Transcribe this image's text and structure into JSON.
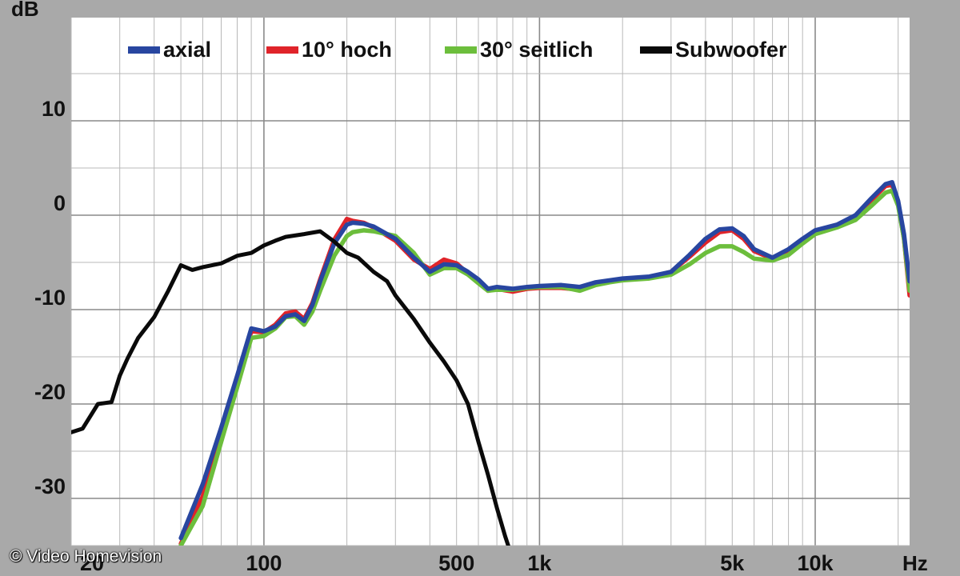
{
  "chart_data": {
    "type": "line",
    "title": "",
    "xlabel": "Hz",
    "ylabel": "dB",
    "x_scale": "log",
    "xlim": [
      20,
      22000
    ],
    "ylim": [
      -35,
      15
    ],
    "grid": true,
    "legend_position": "top",
    "x_ticks": [
      {
        "value": 20,
        "label": "20"
      },
      {
        "value": 100,
        "label": "100"
      },
      {
        "value": 500,
        "label": "500"
      },
      {
        "value": 1000,
        "label": "1k"
      },
      {
        "value": 5000,
        "label": "5k"
      },
      {
        "value": 10000,
        "label": "10k"
      }
    ],
    "y_ticks": [
      {
        "value": 10,
        "label": "10"
      },
      {
        "value": 0,
        "label": "0"
      },
      {
        "value": -10,
        "label": "-10"
      },
      {
        "value": -20,
        "label": "-20"
      },
      {
        "value": -30,
        "label": "-30"
      }
    ],
    "series": [
      {
        "name": "axial",
        "color": "#2846a0",
        "points": [
          [
            50,
            -34.2
          ],
          [
            60,
            -28.5
          ],
          [
            70,
            -22.5
          ],
          [
            80,
            -17
          ],
          [
            90,
            -12
          ],
          [
            100,
            -12.3
          ],
          [
            110,
            -11.8
          ],
          [
            120,
            -10.7
          ],
          [
            130,
            -10.5
          ],
          [
            140,
            -11.2
          ],
          [
            150,
            -9.5
          ],
          [
            160,
            -7
          ],
          [
            180,
            -3
          ],
          [
            200,
            -1
          ],
          [
            210,
            -0.8
          ],
          [
            230,
            -0.9
          ],
          [
            250,
            -1.2
          ],
          [
            300,
            -2.5
          ],
          [
            350,
            -4.5
          ],
          [
            400,
            -6
          ],
          [
            450,
            -5.2
          ],
          [
            500,
            -5.3
          ],
          [
            550,
            -6
          ],
          [
            600,
            -6.8
          ],
          [
            650,
            -7.8
          ],
          [
            700,
            -7.6
          ],
          [
            800,
            -7.8
          ],
          [
            900,
            -7.6
          ],
          [
            1000,
            -7.5
          ],
          [
            1200,
            -7.4
          ],
          [
            1400,
            -7.6
          ],
          [
            1600,
            -7.1
          ],
          [
            1800,
            -6.9
          ],
          [
            2000,
            -6.7
          ],
          [
            2500,
            -6.5
          ],
          [
            3000,
            -6
          ],
          [
            3500,
            -4.2
          ],
          [
            4000,
            -2.5
          ],
          [
            4500,
            -1.5
          ],
          [
            5000,
            -1.4
          ],
          [
            5500,
            -2.2
          ],
          [
            6000,
            -3.6
          ],
          [
            7000,
            -4.5
          ],
          [
            8000,
            -3.6
          ],
          [
            9000,
            -2.5
          ],
          [
            10000,
            -1.6
          ],
          [
            12000,
            -1
          ],
          [
            14000,
            0
          ],
          [
            16000,
            1.8
          ],
          [
            18000,
            3.3
          ],
          [
            19000,
            3.5
          ],
          [
            20000,
            1.5
          ],
          [
            21000,
            -2
          ],
          [
            22000,
            -7
          ]
        ]
      },
      {
        "name": "10° hoch",
        "color": "#e0242a",
        "points": [
          [
            50,
            -34.8
          ],
          [
            60,
            -29.8
          ],
          [
            70,
            -23
          ],
          [
            80,
            -17.5
          ],
          [
            90,
            -12.3
          ],
          [
            100,
            -12.4
          ],
          [
            110,
            -11.6
          ],
          [
            120,
            -10.4
          ],
          [
            130,
            -10.2
          ],
          [
            140,
            -11
          ],
          [
            150,
            -9.3
          ],
          [
            160,
            -6.8
          ],
          [
            180,
            -2.6
          ],
          [
            200,
            -0.4
          ],
          [
            210,
            -0.6
          ],
          [
            230,
            -0.8
          ],
          [
            250,
            -1.3
          ],
          [
            300,
            -2.7
          ],
          [
            350,
            -4.7
          ],
          [
            400,
            -5.7
          ],
          [
            450,
            -4.7
          ],
          [
            500,
            -5.1
          ],
          [
            550,
            -6.2
          ],
          [
            600,
            -7
          ],
          [
            650,
            -8
          ],
          [
            700,
            -7.8
          ],
          [
            800,
            -8.1
          ],
          [
            900,
            -7.8
          ],
          [
            1000,
            -7.7
          ],
          [
            1200,
            -7.7
          ],
          [
            1400,
            -7.9
          ],
          [
            1600,
            -7.3
          ],
          [
            1800,
            -7
          ],
          [
            2000,
            -6.8
          ],
          [
            2500,
            -6.6
          ],
          [
            3000,
            -6
          ],
          [
            3500,
            -4.4
          ],
          [
            4000,
            -2.9
          ],
          [
            4500,
            -1.8
          ],
          [
            5000,
            -1.6
          ],
          [
            5500,
            -2.5
          ],
          [
            6000,
            -3.8
          ],
          [
            7000,
            -4.6
          ],
          [
            8000,
            -3.8
          ],
          [
            9000,
            -2.6
          ],
          [
            10000,
            -1.7
          ],
          [
            12000,
            -1.1
          ],
          [
            14000,
            -0.1
          ],
          [
            16000,
            1.6
          ],
          [
            18000,
            3.1
          ],
          [
            19000,
            3.2
          ],
          [
            20000,
            1.2
          ],
          [
            21000,
            -2.5
          ],
          [
            22000,
            -8.5
          ]
        ]
      },
      {
        "name": "30° seitlich",
        "color": "#6cbe3c",
        "points": [
          [
            50,
            -35
          ],
          [
            60,
            -30.8
          ],
          [
            70,
            -24
          ],
          [
            80,
            -18.2
          ],
          [
            90,
            -13
          ],
          [
            100,
            -12.8
          ],
          [
            110,
            -12
          ],
          [
            120,
            -10.8
          ],
          [
            130,
            -10.7
          ],
          [
            140,
            -11.6
          ],
          [
            150,
            -10.2
          ],
          [
            160,
            -8
          ],
          [
            180,
            -4.3
          ],
          [
            200,
            -2.2
          ],
          [
            210,
            -1.8
          ],
          [
            230,
            -1.6
          ],
          [
            250,
            -1.7
          ],
          [
            300,
            -2.2
          ],
          [
            350,
            -4
          ],
          [
            400,
            -6.3
          ],
          [
            450,
            -5.6
          ],
          [
            500,
            -5.6
          ],
          [
            550,
            -6.3
          ],
          [
            600,
            -7.2
          ],
          [
            650,
            -8
          ],
          [
            700,
            -7.9
          ],
          [
            800,
            -7.9
          ],
          [
            900,
            -7.7
          ],
          [
            1000,
            -7.6
          ],
          [
            1200,
            -7.6
          ],
          [
            1400,
            -8
          ],
          [
            1600,
            -7.4
          ],
          [
            1800,
            -7.1
          ],
          [
            2000,
            -6.9
          ],
          [
            2500,
            -6.7
          ],
          [
            3000,
            -6.3
          ],
          [
            3500,
            -5.2
          ],
          [
            4000,
            -4
          ],
          [
            4500,
            -3.3
          ],
          [
            5000,
            -3.3
          ],
          [
            5500,
            -3.9
          ],
          [
            6000,
            -4.6
          ],
          [
            7000,
            -4.8
          ],
          [
            8000,
            -4.2
          ],
          [
            9000,
            -3
          ],
          [
            10000,
            -2
          ],
          [
            12000,
            -1.3
          ],
          [
            14000,
            -0.5
          ],
          [
            16000,
            1
          ],
          [
            18000,
            2.4
          ],
          [
            19000,
            2.6
          ],
          [
            20000,
            1
          ],
          [
            21000,
            -2.5
          ],
          [
            22000,
            -8
          ]
        ]
      },
      {
        "name": "Subwoofer",
        "color": "#0a0a0a",
        "points": [
          [
            20,
            -23
          ],
          [
            22,
            -22.6
          ],
          [
            25,
            -20
          ],
          [
            28,
            -19.8
          ],
          [
            30,
            -17
          ],
          [
            32,
            -15.2
          ],
          [
            35,
            -13
          ],
          [
            40,
            -10.8
          ],
          [
            45,
            -8
          ],
          [
            50,
            -5.3
          ],
          [
            55,
            -5.8
          ],
          [
            60,
            -5.5
          ],
          [
            70,
            -5.1
          ],
          [
            80,
            -4.3
          ],
          [
            90,
            -4
          ],
          [
            100,
            -3.2
          ],
          [
            110,
            -2.7
          ],
          [
            120,
            -2.3
          ],
          [
            140,
            -2
          ],
          [
            160,
            -1.7
          ],
          [
            180,
            -2.8
          ],
          [
            200,
            -4
          ],
          [
            220,
            -4.5
          ],
          [
            250,
            -6
          ],
          [
            280,
            -7
          ],
          [
            300,
            -8.5
          ],
          [
            350,
            -11
          ],
          [
            400,
            -13.5
          ],
          [
            450,
            -15.5
          ],
          [
            500,
            -17.5
          ],
          [
            550,
            -20
          ],
          [
            600,
            -24
          ],
          [
            650,
            -27.5
          ],
          [
            700,
            -31
          ],
          [
            750,
            -34
          ],
          [
            770,
            -35
          ]
        ]
      }
    ],
    "unit_marks": {
      "y": "dB",
      "x": "Hz"
    }
  },
  "credit": "© Video Homevision"
}
